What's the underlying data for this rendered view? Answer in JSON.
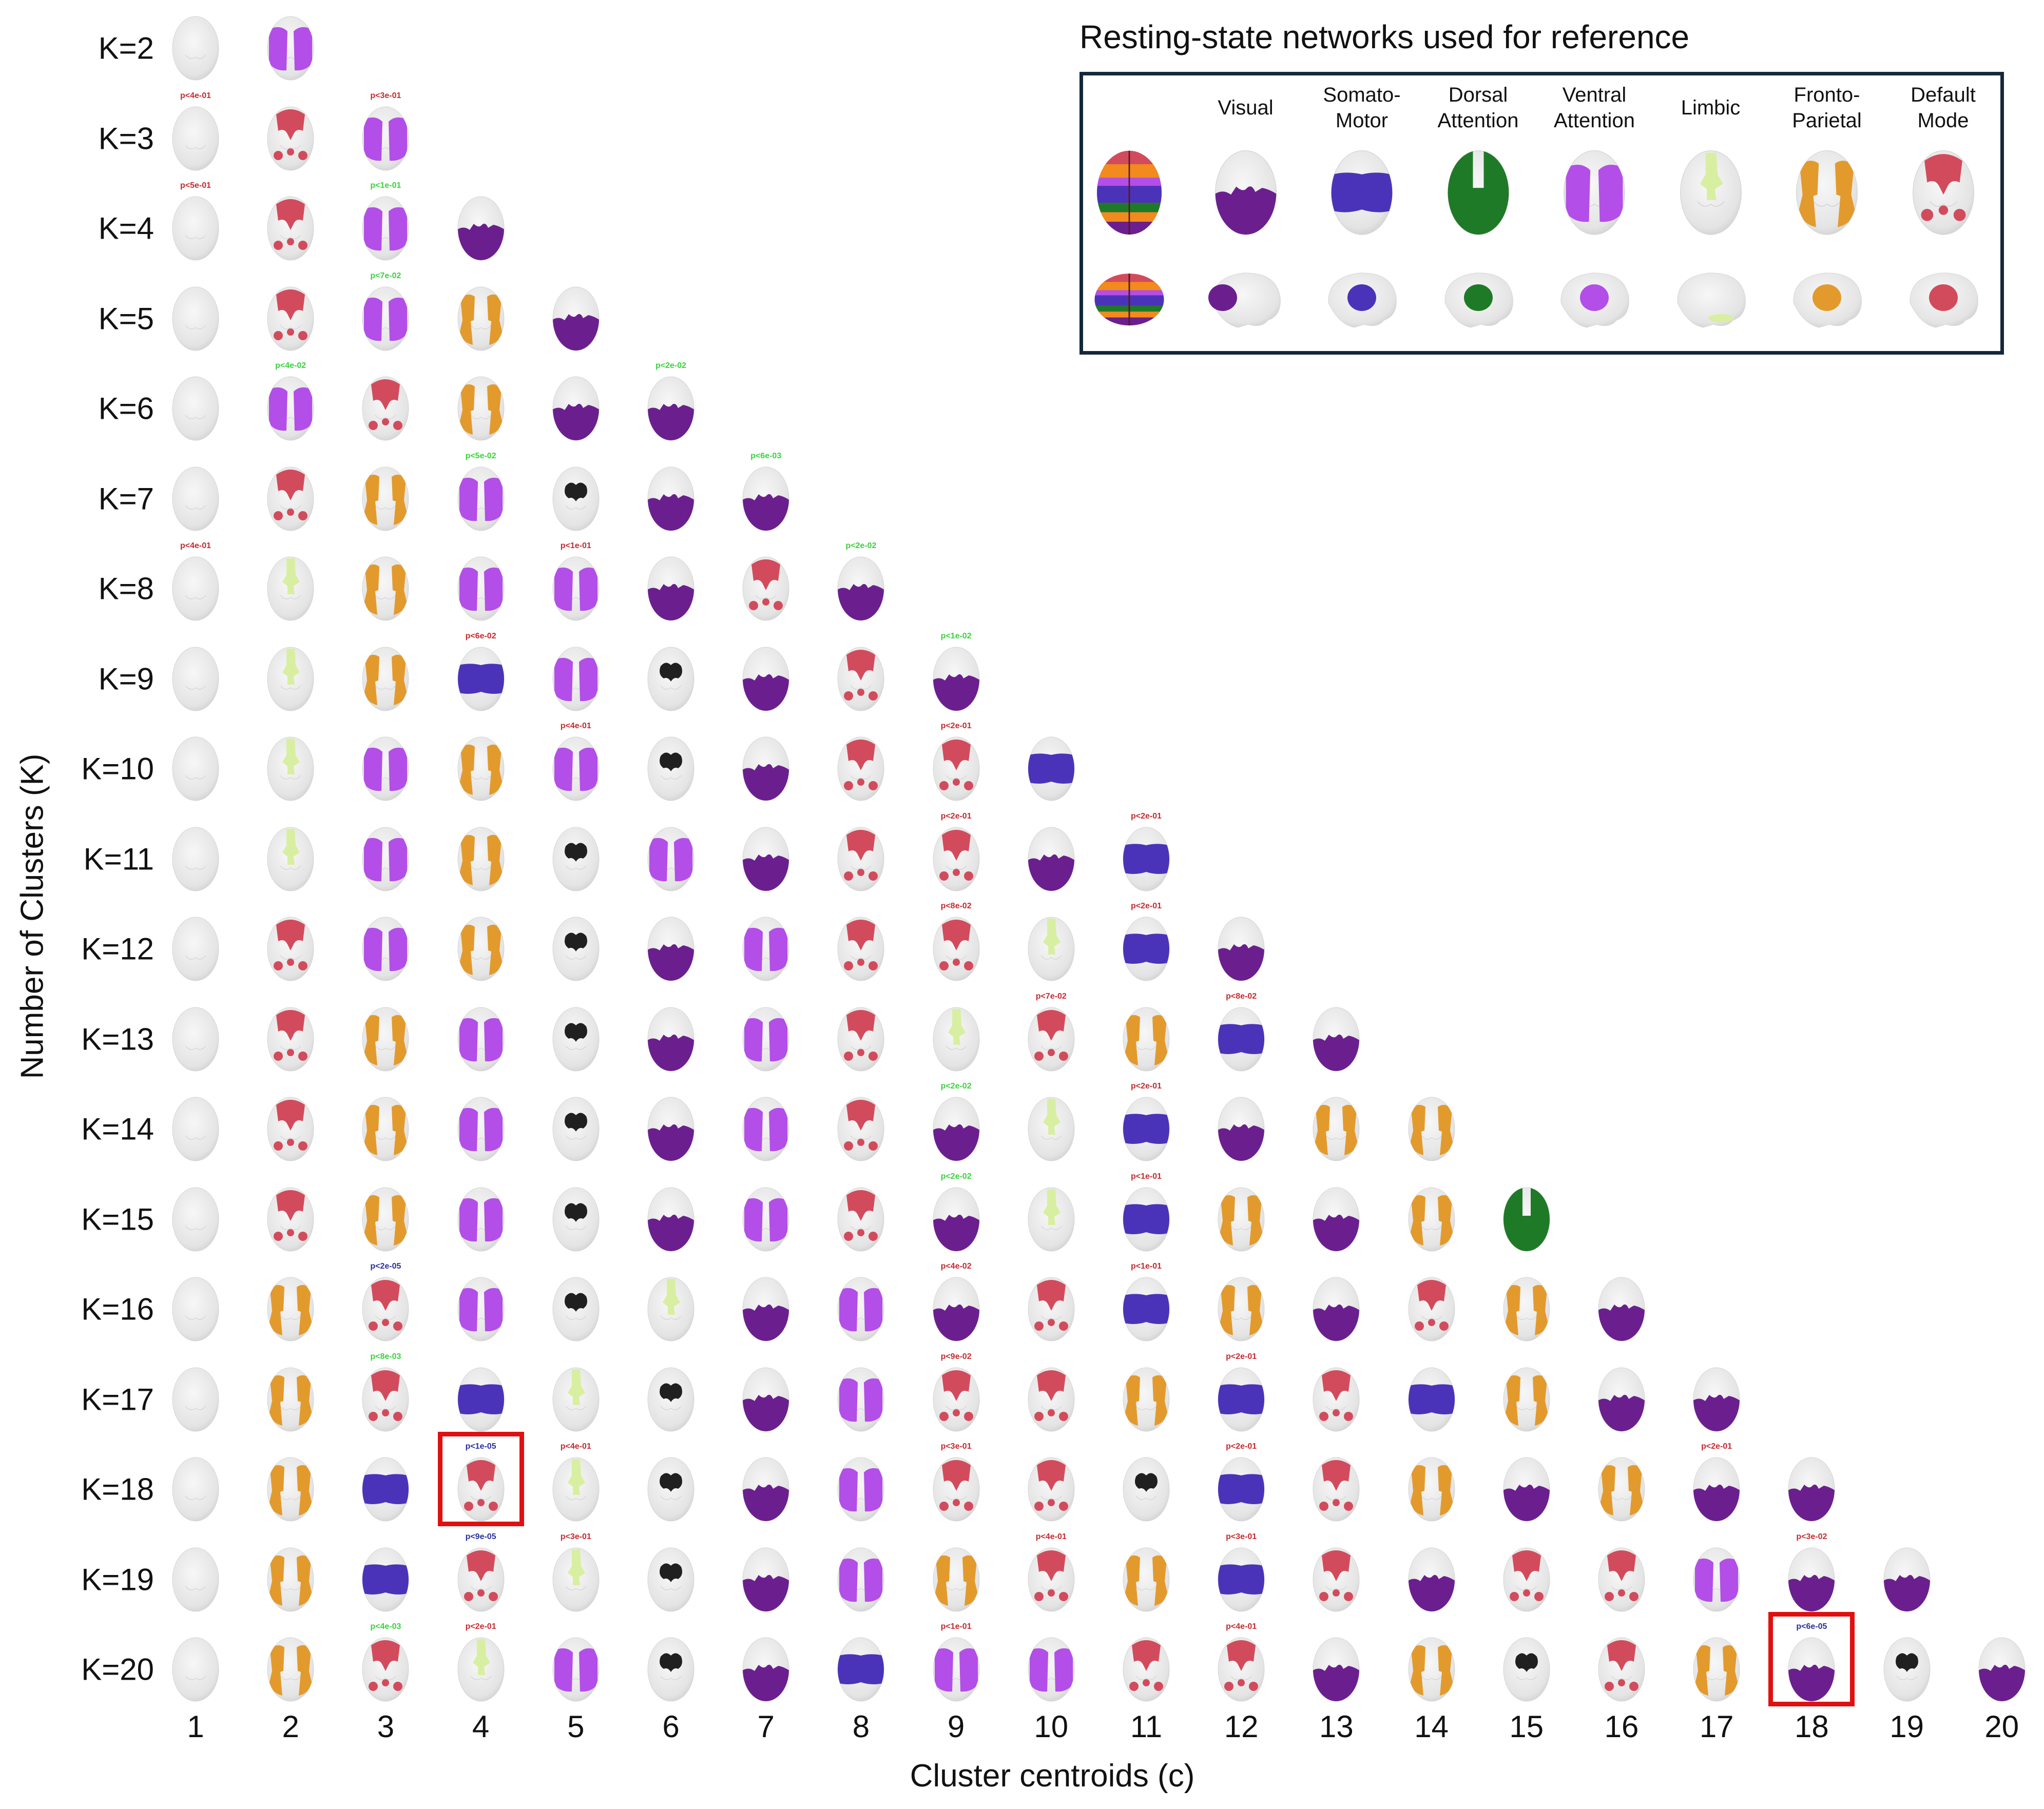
{
  "axes": {
    "y_title": "Number of Clusters (K)",
    "x_title": "Cluster centroids (c)",
    "columns": [
      "1",
      "2",
      "3",
      "4",
      "5",
      "6",
      "7",
      "8",
      "9",
      "10",
      "11",
      "12",
      "13",
      "14",
      "15",
      "16",
      "17",
      "18",
      "19",
      "20"
    ]
  },
  "network_colors": {
    "W": "#e9e9e9",
    "R": "#d24b5c",
    "P": "#b34ee8",
    "D": "#6b1f8e",
    "O": "#e39a2c",
    "B": "#4b33b9",
    "G": "#1f7a27",
    "L": "#d8efa2",
    "K": "#202020"
  },
  "pvalue_colors": {
    "red": "#c42a30",
    "green": "#39d33c",
    "blue": "#27309a"
  },
  "rows": [
    {
      "label": "K=2",
      "cells": "WP"
    },
    {
      "label": "K=3",
      "cells": "WRP"
    },
    {
      "label": "K=4",
      "cells": "WRPD"
    },
    {
      "label": "K=5",
      "cells": "WRPOD"
    },
    {
      "label": "K=6",
      "cells": "WPRODD"
    },
    {
      "label": "K=7",
      "cells": "WROPKDD"
    },
    {
      "label": "K=8",
      "cells": "WLOPPDRD"
    },
    {
      "label": "K=9",
      "cells": "WLOBPKDRD"
    },
    {
      "label": "K=10",
      "cells": "WLPOPKDRRB"
    },
    {
      "label": "K=11",
      "cells": "WLPOKPDRRDB"
    },
    {
      "label": "K=12",
      "cells": "WRPOKDPRRLBD"
    },
    {
      "label": "K=13",
      "cells": "WROPKDPRLROBD"
    },
    {
      "label": "K=14",
      "cells": "WROPKDPRDLBDOO"
    },
    {
      "label": "K=15",
      "cells": "WROPKDPRDLBODOG"
    },
    {
      "label": "K=16",
      "cells": "WORPKLDPDRBODROD"
    },
    {
      "label": "K=17",
      "cells": "WORBLKDPRROBRBODD"
    },
    {
      "label": "K=18",
      "cells": "WOBRLKDPRRKBRODODD"
    },
    {
      "label": "K=19",
      "cells": "WOBRLKDPOROBRDRRPDD"
    },
    {
      "label": "K=20",
      "cells": "WORLPKDBPPRRDOKRODKD"
    }
  ],
  "pvalues": [
    {
      "k": 3,
      "c": 1,
      "text": "p<4e-01",
      "color": "red"
    },
    {
      "k": 3,
      "c": 3,
      "text": "p<3e-01",
      "color": "red"
    },
    {
      "k": 4,
      "c": 1,
      "text": "p<5e-01",
      "color": "red"
    },
    {
      "k": 4,
      "c": 3,
      "text": "p<1e-01",
      "color": "green"
    },
    {
      "k": 5,
      "c": 3,
      "text": "p<7e-02",
      "color": "green"
    },
    {
      "k": 6,
      "c": 2,
      "text": "p<4e-02",
      "color": "green"
    },
    {
      "k": 6,
      "c": 6,
      "text": "p<2e-02",
      "color": "green"
    },
    {
      "k": 7,
      "c": 4,
      "text": "p<5e-02",
      "color": "green"
    },
    {
      "k": 7,
      "c": 7,
      "text": "p<6e-03",
      "color": "green"
    },
    {
      "k": 8,
      "c": 1,
      "text": "p<4e-01",
      "color": "red"
    },
    {
      "k": 8,
      "c": 5,
      "text": "p<1e-01",
      "color": "red"
    },
    {
      "k": 8,
      "c": 8,
      "text": "p<2e-02",
      "color": "green"
    },
    {
      "k": 9,
      "c": 4,
      "text": "p<6e-02",
      "color": "red"
    },
    {
      "k": 9,
      "c": 9,
      "text": "p<1e-02",
      "color": "green"
    },
    {
      "k": 10,
      "c": 5,
      "text": "p<4e-01",
      "color": "red"
    },
    {
      "k": 10,
      "c": 9,
      "text": "p<2e-01",
      "color": "red"
    },
    {
      "k": 11,
      "c": 9,
      "text": "p<2e-01",
      "color": "red"
    },
    {
      "k": 11,
      "c": 11,
      "text": "p<2e-01",
      "color": "red"
    },
    {
      "k": 12,
      "c": 9,
      "text": "p<8e-02",
      "color": "red"
    },
    {
      "k": 12,
      "c": 11,
      "text": "p<2e-01",
      "color": "red"
    },
    {
      "k": 13,
      "c": 10,
      "text": "p<7e-02",
      "color": "red"
    },
    {
      "k": 13,
      "c": 12,
      "text": "p<8e-02",
      "color": "red"
    },
    {
      "k": 14,
      "c": 9,
      "text": "p<2e-02",
      "color": "green"
    },
    {
      "k": 14,
      "c": 11,
      "text": "p<2e-01",
      "color": "red"
    },
    {
      "k": 15,
      "c": 9,
      "text": "p<2e-02",
      "color": "green"
    },
    {
      "k": 15,
      "c": 11,
      "text": "p<1e-01",
      "color": "red"
    },
    {
      "k": 16,
      "c": 3,
      "text": "p<2e-05",
      "color": "blue"
    },
    {
      "k": 16,
      "c": 9,
      "text": "p<4e-02",
      "color": "red"
    },
    {
      "k": 16,
      "c": 11,
      "text": "p<1e-01",
      "color": "red"
    },
    {
      "k": 17,
      "c": 3,
      "text": "p<8e-03",
      "color": "green"
    },
    {
      "k": 17,
      "c": 9,
      "text": "p<9e-02",
      "color": "red"
    },
    {
      "k": 17,
      "c": 12,
      "text": "p<2e-01",
      "color": "red"
    },
    {
      "k": 18,
      "c": 4,
      "text": "p<1e-05",
      "color": "blue"
    },
    {
      "k": 18,
      "c": 5,
      "text": "p<4e-01",
      "color": "red"
    },
    {
      "k": 18,
      "c": 9,
      "text": "p<3e-01",
      "color": "red"
    },
    {
      "k": 18,
      "c": 12,
      "text": "p<2e-01",
      "color": "red"
    },
    {
      "k": 18,
      "c": 17,
      "text": "p<2e-01",
      "color": "red"
    },
    {
      "k": 19,
      "c": 4,
      "text": "p<9e-05",
      "color": "blue"
    },
    {
      "k": 19,
      "c": 5,
      "text": "p<3e-01",
      "color": "red"
    },
    {
      "k": 19,
      "c": 10,
      "text": "p<4e-01",
      "color": "red"
    },
    {
      "k": 19,
      "c": 12,
      "text": "p<3e-01",
      "color": "red"
    },
    {
      "k": 19,
      "c": 18,
      "text": "p<3e-02",
      "color": "red"
    },
    {
      "k": 20,
      "c": 3,
      "text": "p<4e-03",
      "color": "green"
    },
    {
      "k": 20,
      "c": 4,
      "text": "p<2e-01",
      "color": "red"
    },
    {
      "k": 20,
      "c": 9,
      "text": "p<1e-01",
      "color": "red"
    },
    {
      "k": 20,
      "c": 12,
      "text": "p<4e-01",
      "color": "red"
    },
    {
      "k": 20,
      "c": 18,
      "text": "p<6e-05",
      "color": "blue"
    }
  ],
  "highlights": [
    {
      "k": 18,
      "c": 4
    },
    {
      "k": 20,
      "c": 18
    }
  ],
  "reference": {
    "title": "Resting-state networks used for reference",
    "networks": [
      {
        "label": "Visual",
        "code": "D"
      },
      {
        "label": "Somato-\nMotor",
        "code": "B"
      },
      {
        "label": "Dorsal\nAttention",
        "code": "G"
      },
      {
        "label": "Ventral\nAttention",
        "code": "P"
      },
      {
        "label": "Limbic",
        "code": "L"
      },
      {
        "label": "Fronto-\nParietal",
        "code": "O"
      },
      {
        "label": "Default\nMode",
        "code": "R"
      }
    ]
  }
}
